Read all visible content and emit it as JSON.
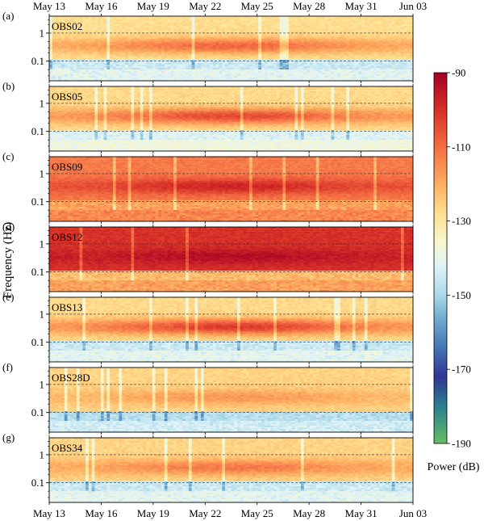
{
  "chart_data": {
    "type": "heatmap",
    "ylabel": "Frequency (Hz)",
    "x_ticks": [
      "May 13",
      "May 16",
      "May 19",
      "May 22",
      "May 25",
      "May 28",
      "May 31",
      "Jun 03"
    ],
    "x_range": [
      "May 13",
      "Jun 03"
    ],
    "y_scale": "log",
    "y_ticks": [
      1,
      0.1
    ],
    "y_tick_labels": [
      "1",
      "0.1"
    ],
    "y_range": [
      0.02,
      4
    ],
    "dashed_reference_lines_hz": [
      0.1,
      1
    ],
    "colorbar": {
      "label": "Power (dB)",
      "min": -190,
      "max": -90,
      "ticks": [
        -90,
        -110,
        -130,
        -150,
        -170,
        -190
      ],
      "tick_labels": [
        "-90",
        "-110",
        "-130",
        "-150",
        "-170",
        "-190"
      ],
      "colors": [
        "#b2182b",
        "#d6604d",
        "#f4a582",
        "#fddbc7",
        "#f7f7f7",
        "#92c5de",
        "#4393c3",
        "#2166ac",
        "#313695",
        "#1a9850",
        "#66bd63"
      ]
    },
    "panels": [
      {
        "letter": "(a)",
        "station": "OBS02",
        "background_db": -128,
        "band_db": -112,
        "low_noise_db": -145
      },
      {
        "letter": "(b)",
        "station": "OBS05",
        "background_db": -127,
        "band_db": -108,
        "low_noise_db": -142
      },
      {
        "letter": "(c)",
        "station": "OBS09",
        "background_db": -112,
        "band_db": -100,
        "low_noise_db": -118
      },
      {
        "letter": "(d)",
        "station": "OBS12",
        "background_db": -100,
        "band_db": -94,
        "low_noise_db": -122
      },
      {
        "letter": "(e)",
        "station": "OBS13",
        "background_db": -127,
        "band_db": -106,
        "low_noise_db": -145
      },
      {
        "letter": "(f)",
        "station": "OBS28D",
        "background_db": -126,
        "band_db": -118,
        "low_noise_db": -148
      },
      {
        "letter": "(g)",
        "station": "OBS34",
        "background_db": -126,
        "band_db": -114,
        "low_noise_db": -145
      }
    ]
  }
}
